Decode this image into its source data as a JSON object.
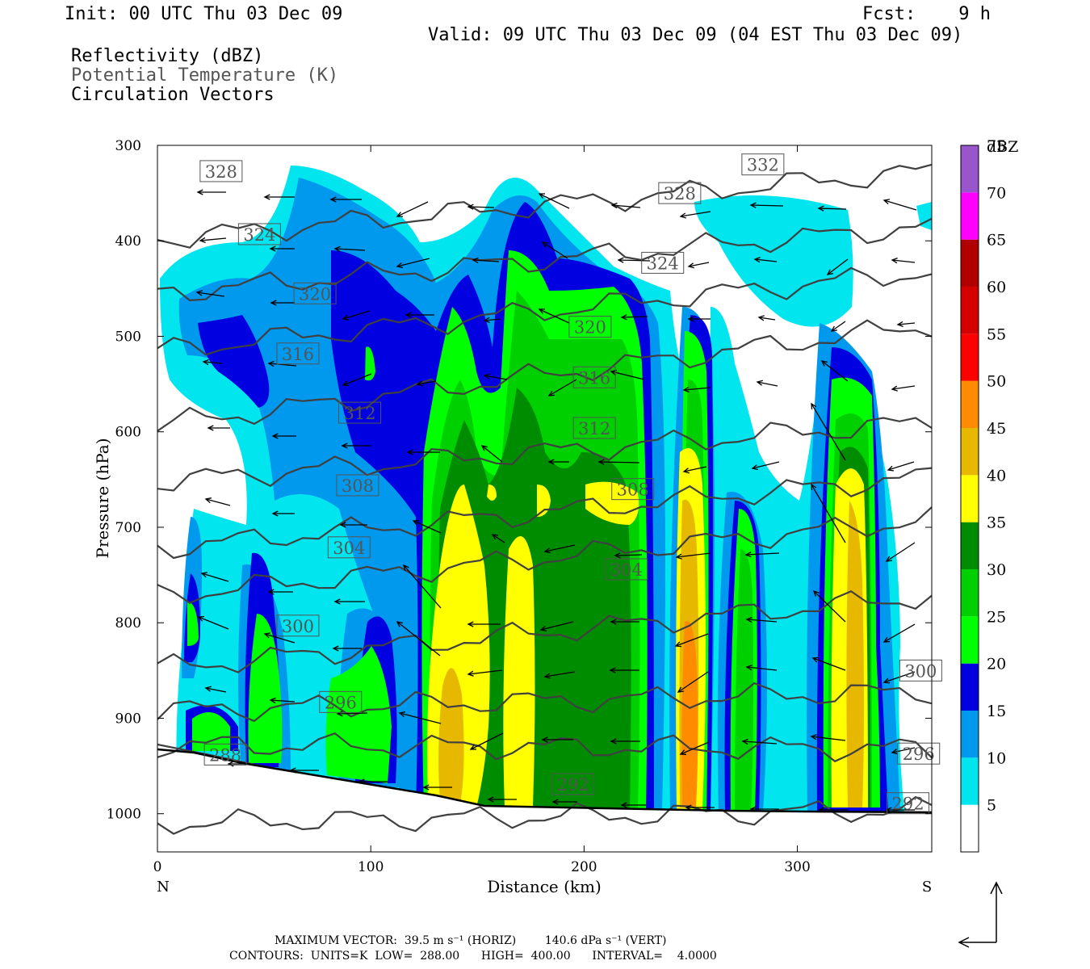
{
  "header": {
    "init": "Init: 00 UTC Thu 03 Dec 09",
    "fcst": "Fcst:    9 h",
    "valid": "Valid: 09 UTC Thu 03 Dec 09 (04 EST Thu 03 Dec 09)",
    "field1": "Reflectivity (dBZ)",
    "field2": "Potential Temperature (K)",
    "field3": "Circulation Vectors"
  },
  "footer": {
    "line1": "MAXIMUM VECTOR:  39.5 m s⁻¹ (HORIZ)        140.6 dPa s⁻¹ (VERT)",
    "line2": "CONTOURS:  UNITS=K  LOW=  288.00      HIGH=  400.00      INTERVAL=    4.0000"
  },
  "colors": {
    "contour": "#404040",
    "levels": [
      "#ffffff",
      "#00e5ee",
      "#0099ee",
      "#0000e0",
      "#00ff00",
      "#00d000",
      "#008c00",
      "#ffff00",
      "#e6b800",
      "#ff8c00",
      "#ff0000",
      "#d40000",
      "#b00000",
      "#ff00ff",
      "#9955cc"
    ]
  },
  "chart_data": {
    "type": "heatmap",
    "title": "Reflectivity (dBZ)",
    "xlabel": "Distance (km)",
    "ylabel": "Pressure (hPa)",
    "xlim": [
      0,
      363
    ],
    "ylim": [
      1040,
      300
    ],
    "x_ticks": [
      0,
      100,
      200,
      300
    ],
    "y_ticks": [
      300,
      400,
      500,
      600,
      700,
      800,
      900,
      1000
    ],
    "x_end_labels": {
      "left": "N",
      "right": "S"
    },
    "colorbar": {
      "unit": "dBZ",
      "levels": [
        5,
        10,
        15,
        20,
        25,
        30,
        35,
        40,
        45,
        50,
        55,
        60,
        65,
        70,
        75
      ]
    },
    "theta_contours": [
      {
        "label": "332",
        "x": 274,
        "p": 320
      },
      {
        "label": "328",
        "x": 20,
        "p": 327
      },
      {
        "label": "328",
        "x": 235,
        "p": 350
      },
      {
        "label": "324",
        "x": 38,
        "p": 393
      },
      {
        "label": "324",
        "x": 227,
        "p": 423
      },
      {
        "label": "320",
        "x": 64,
        "p": 455
      },
      {
        "label": "320",
        "x": 193,
        "p": 490
      },
      {
        "label": "316",
        "x": 56,
        "p": 518
      },
      {
        "label": "316",
        "x": 195,
        "p": 543
      },
      {
        "label": "312",
        "x": 85,
        "p": 580
      },
      {
        "label": "312",
        "x": 195,
        "p": 596
      },
      {
        "label": "308",
        "x": 84,
        "p": 656
      },
      {
        "label": "308",
        "x": 213,
        "p": 660
      },
      {
        "label": "304",
        "x": 80,
        "p": 721
      },
      {
        "label": "304",
        "x": 210,
        "p": 744
      },
      {
        "label": "300",
        "x": 56,
        "p": 803
      },
      {
        "label": "300",
        "x": 348,
        "p": 850
      },
      {
        "label": "296",
        "x": 76,
        "p": 883
      },
      {
        "label": "296",
        "x": 347,
        "p": 937
      },
      {
        "label": "292",
        "x": 185,
        "p": 969
      },
      {
        "label": "292",
        "x": 342,
        "p": 989
      },
      {
        "label": "288",
        "x": 22,
        "p": 938
      }
    ],
    "max_vector": {
      "horiz": "39.5 m s-1",
      "vert": "140.6 dPa s-1"
    },
    "contour_info": {
      "units": "K",
      "low": 288.0,
      "high": 400.0,
      "interval": 4.0
    }
  }
}
